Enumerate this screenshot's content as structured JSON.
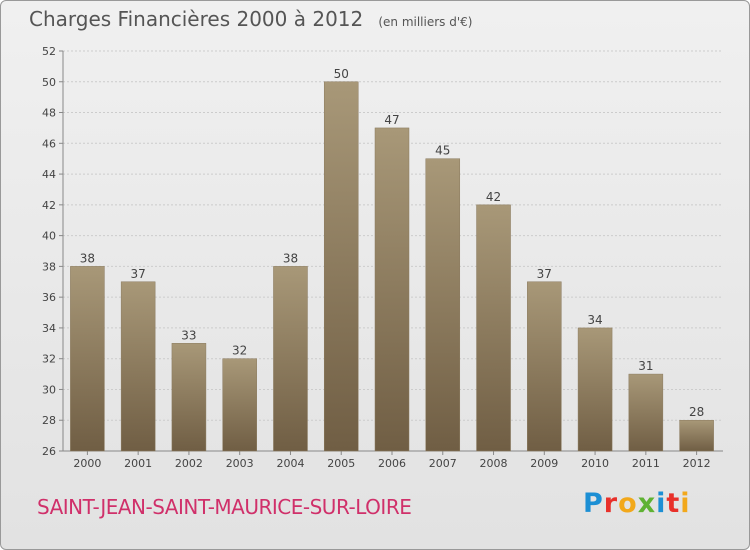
{
  "header": {
    "title": "Charges Financières 2000 à 2012",
    "unit": "(en milliers d'€)"
  },
  "footer": {
    "commune": "SAINT-JEAN-SAINT-MAURICE-SUR-LOIRE",
    "logo_text": "Proxiti",
    "logo_letters": [
      {
        "char": "P",
        "color": "#1c8fd4"
      },
      {
        "char": "r",
        "color": "#e8302a"
      },
      {
        "char": "o",
        "color": "#f2a81b"
      },
      {
        "char": "x",
        "color": "#5fb233"
      },
      {
        "char": "i",
        "color": "#1c8fd4"
      },
      {
        "char": "t",
        "color": "#e8302a"
      },
      {
        "char": "i",
        "color": "#f2a81b"
      }
    ]
  },
  "colors": {
    "bar_top": "#a89878",
    "bar_bottom": "#705e44",
    "title": "#555555",
    "commune": "#d0306a",
    "grid": "#cccccc"
  },
  "chart_data": {
    "type": "bar",
    "title": "Charges Financières 2000 à 2012",
    "subtitle": "(en milliers d'€)",
    "categories": [
      "2000",
      "2001",
      "2002",
      "2003",
      "2004",
      "2005",
      "2006",
      "2007",
      "2008",
      "2009",
      "2010",
      "2011",
      "2012"
    ],
    "values": [
      38,
      37,
      33,
      32,
      38,
      50,
      47,
      45,
      42,
      37,
      34,
      31,
      28
    ],
    "ylim": [
      26,
      52
    ],
    "yticks": [
      26,
      28,
      30,
      32,
      34,
      36,
      38,
      40,
      42,
      44,
      46,
      48,
      50,
      52
    ],
    "grid": true,
    "data_labels": true
  }
}
